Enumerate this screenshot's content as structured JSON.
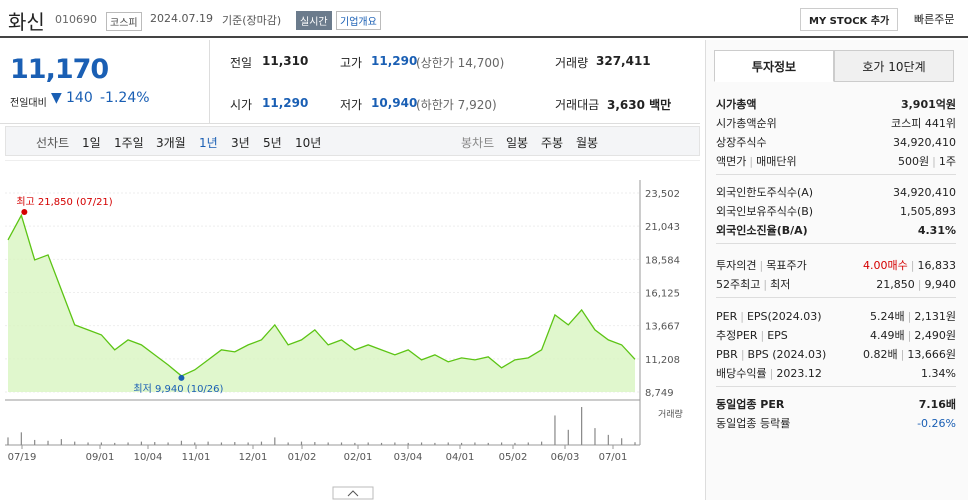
{
  "header": {
    "name": "화신",
    "code": "010690",
    "market": "코스피",
    "date": "2024.07.19",
    "basis": "기준(장마감)",
    "realtime": "실시간",
    "company": "기업개요",
    "mystock": "MY STOCK 추가",
    "quick_order": "빠른주문"
  },
  "price": {
    "current": "11,170",
    "change_label": "전일대비",
    "change": "140",
    "change_pct": "-1.24%"
  },
  "summary": {
    "prev_label": "전일",
    "prev": "11,310",
    "high_label": "고가",
    "high": "11,290",
    "upper": "(상한가 14,700)",
    "volume_label": "거래량",
    "volume": "327,411",
    "open_label": "시가",
    "open": "11,290",
    "low_label": "저가",
    "low": "10,940",
    "lower": "(하한가 7,920)",
    "amount_label": "거래대금",
    "amount": "3,630 백만"
  },
  "tabs": {
    "line_label": "선차트",
    "line": [
      "1일",
      "1주일",
      "3개월",
      "1년",
      "3년",
      "5년",
      "10년"
    ],
    "candle_label": "봉차트",
    "candle": [
      "일봉",
      "주봉",
      "월봉"
    ]
  },
  "chart": {
    "type": "line",
    "color": "#5cc414",
    "ylim": [
      8749,
      23502
    ],
    "yticks": [
      {
        "value": 23502,
        "label": "23,502"
      },
      {
        "value": 21043,
        "label": "21,043"
      },
      {
        "value": 18584,
        "label": "18,584"
      },
      {
        "value": 16125,
        "label": "16,125"
      },
      {
        "value": 13667,
        "label": "13,667"
      },
      {
        "value": 11208,
        "label": "11,208"
      },
      {
        "value": 8749,
        "label": "8,749"
      }
    ],
    "categories": [
      "07/19",
      "09/01",
      "10/04",
      "11/01",
      "12/01",
      "01/02",
      "02/01",
      "03/04",
      "04/01",
      "05/02",
      "06/03",
      "07/01"
    ],
    "values": [
      20021,
      21850,
      18539,
      18910,
      16317,
      13725,
      13355,
      12984,
      11873,
      12614,
      12243,
      11503,
      10762,
      9940,
      10391,
      11132,
      11873,
      11725,
      12243,
      12614,
      13725,
      12243,
      12614,
      13355,
      12243,
      12614,
      11873,
      12243,
      11873,
      11503,
      11873,
      11132,
      11503,
      10984,
      11280,
      11132,
      11355,
      10540,
      11132,
      11280,
      11873,
      14466,
      13725,
      14836,
      13355,
      12614,
      12243,
      11170
    ],
    "high_label": "최고 21,850 (07/21)",
    "low_label": "최저 9,940 (10/26)",
    "volume_label": "거래량",
    "volume_color": "#888888",
    "volume": [
      900,
      1500,
      600,
      500,
      700,
      400,
      300,
      300,
      250,
      300,
      400,
      350,
      300,
      500,
      300,
      400,
      300,
      350,
      300,
      400,
      900,
      300,
      400,
      350,
      300,
      300,
      250,
      300,
      250,
      300,
      250,
      300,
      250,
      300,
      250,
      300,
      250,
      300,
      250,
      300,
      400,
      3500,
      1800,
      4500,
      2000,
      1200,
      800,
      330
    ]
  },
  "panel": {
    "tabs": [
      "투자정보",
      "호가 10단계"
    ],
    "sections": [
      [
        {
          "label": [
            "시가총액"
          ],
          "value": [
            "3,901억원"
          ],
          "strong": true
        },
        {
          "label": [
            "시가총액순위"
          ],
          "value": [
            "코스피 441위"
          ]
        },
        {
          "label": [
            "상장주식수"
          ],
          "value": [
            "34,920,410"
          ]
        },
        {
          "label": [
            "액면가",
            "매매단위"
          ],
          "value": [
            "500원",
            "1주"
          ]
        }
      ],
      [
        {
          "label": [
            "외국인한도주식수(A)"
          ],
          "value": [
            "34,920,410"
          ]
        },
        {
          "label": [
            "외국인보유주식수(B)"
          ],
          "value": [
            "1,505,893"
          ]
        },
        {
          "label": [
            "외국인소진율(B/A)"
          ],
          "value": [
            "4.31%"
          ],
          "strong": true
        }
      ],
      [
        {
          "label": [
            "투자의견",
            "목표주가"
          ],
          "value": [
            "4.00매수",
            "16,833"
          ],
          "color": "#d40000"
        },
        {
          "label": [
            "52주최고",
            "최저"
          ],
          "value": [
            "21,850",
            "9,940"
          ]
        }
      ],
      [
        {
          "label": [
            "PER",
            "EPS(2024.03)"
          ],
          "value": [
            "5.24배",
            "2,131원"
          ]
        },
        {
          "label": [
            "추정PER",
            "EPS"
          ],
          "value": [
            "4.49배",
            "2,490원"
          ]
        },
        {
          "label": [
            "PBR",
            "BPS (2024.03)"
          ],
          "value": [
            "0.82배",
            "13,666원"
          ]
        },
        {
          "label": [
            "배당수익률",
            "2023.12"
          ],
          "value": [
            "1.34%"
          ]
        }
      ],
      [
        {
          "label": [
            "동일업종 PER"
          ],
          "value": [
            "7.16배"
          ],
          "strong": true
        },
        {
          "label": [
            "동일업종 등락률"
          ],
          "value": [
            "-0.26%"
          ],
          "color": "#1a5fb4"
        }
      ]
    ]
  }
}
